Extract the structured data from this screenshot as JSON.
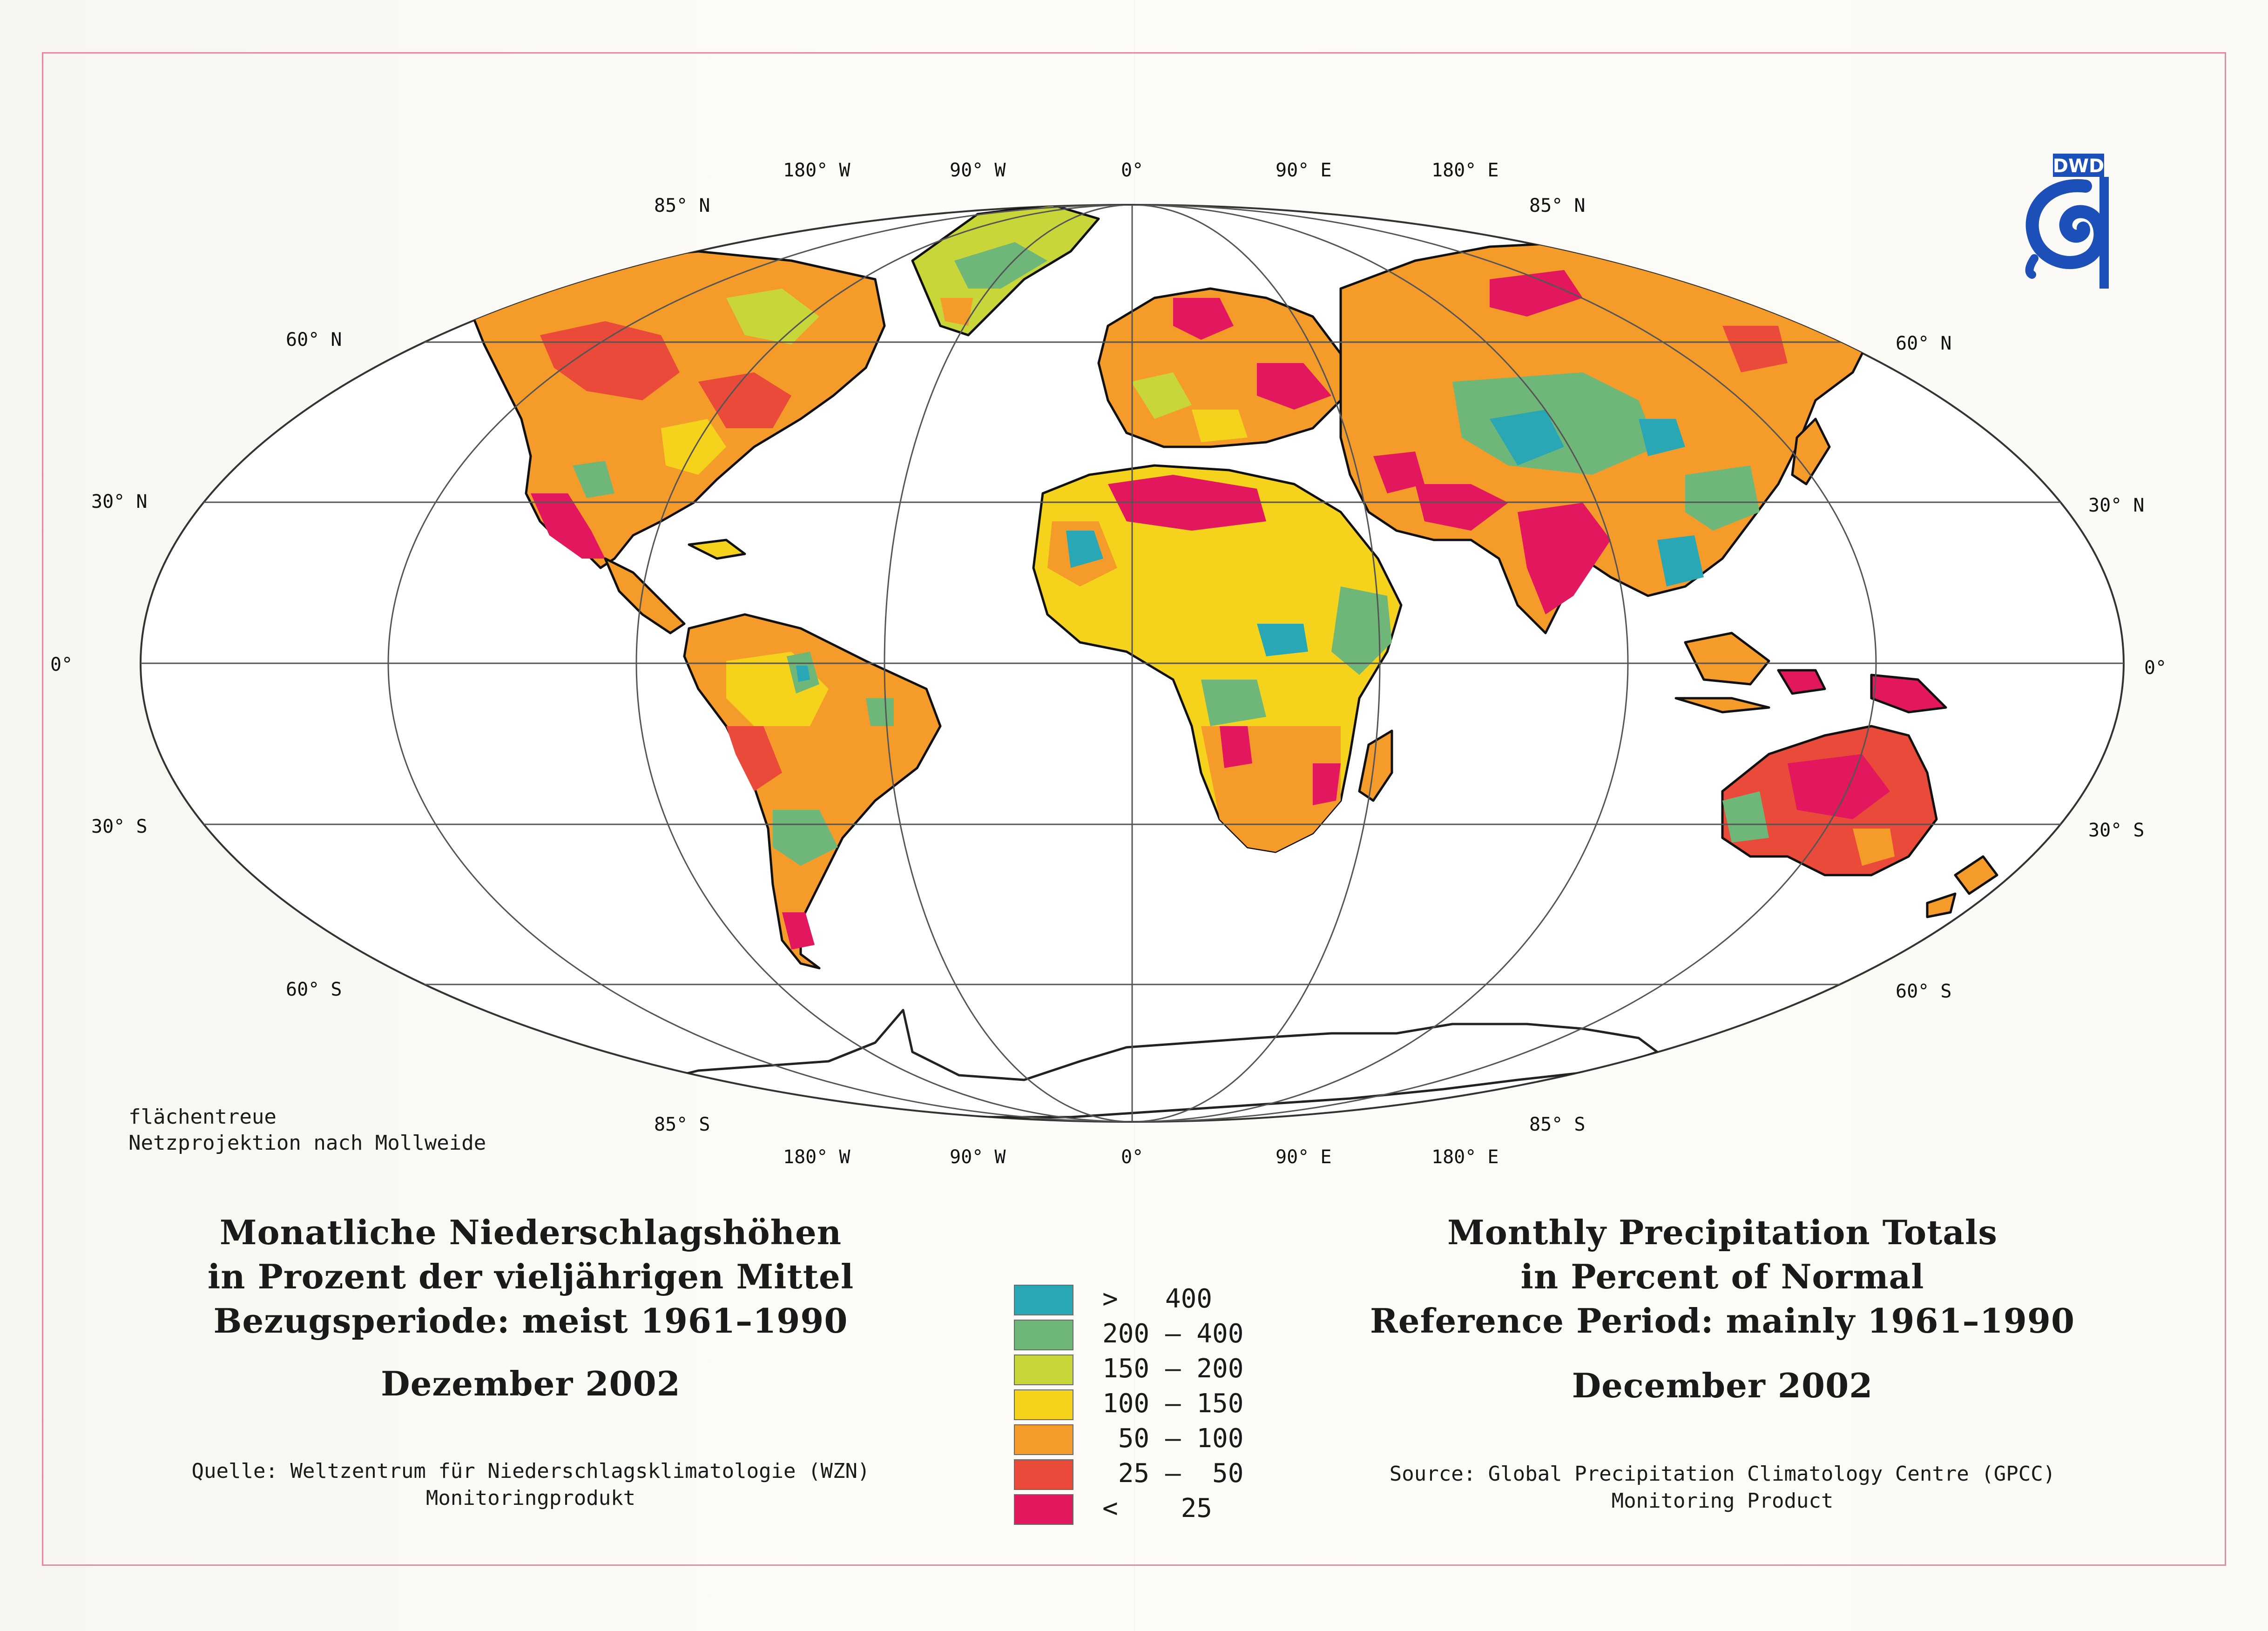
{
  "map": {
    "projection_note": [
      "flächentreue",
      "Netzprojektion nach Mollweide"
    ],
    "longitude_labels": [
      "180° W",
      "90° W",
      "0°",
      "90° E",
      "180° E"
    ],
    "latitude_labels": {
      "n85": "85° N",
      "n60": "60° N",
      "n30": "30° N",
      "eq": "0°",
      "s30": "30° S",
      "s60": "60° S",
      "s85": "85° S"
    },
    "colors": {
      "ocean": "#ffffff",
      "coast": "#111111",
      "grid": "#555555"
    }
  },
  "logo": {
    "text": "DWD",
    "color": "#1d4fb8"
  },
  "title_de": {
    "lines": [
      "Monatliche Niederschlagshöhen",
      "in Prozent der vieljährigen Mittel",
      "Bezugsperiode: meist 1961–1990"
    ],
    "month": "Dezember 2002",
    "source": [
      "Quelle: Weltzentrum für Niederschlagsklimatologie (WZN)",
      "Monitoringprodukt"
    ]
  },
  "title_en": {
    "lines": [
      "Monthly Precipitation Totals",
      "in Percent of Normal",
      "Reference Period: mainly 1961–1990"
    ],
    "month": "December 2002",
    "source": [
      "Source: Global Precipitation Climatology Centre (GPCC)",
      "Monitoring Product"
    ]
  },
  "legend": [
    {
      "label": ">   400",
      "color": "#2aa7b5"
    },
    {
      "label": "200 – 400",
      "color": "#6fb779"
    },
    {
      "label": "150 – 200",
      "color": "#c8d63a"
    },
    {
      "label": "100 – 150",
      "color": "#f5d21c"
    },
    {
      "label": " 50 – 100",
      "color": "#f49b2a"
    },
    {
      "label": " 25 –  50",
      "color": "#ea4a3a"
    },
    {
      "label": "<    25",
      "color": "#e2175e"
    }
  ]
}
